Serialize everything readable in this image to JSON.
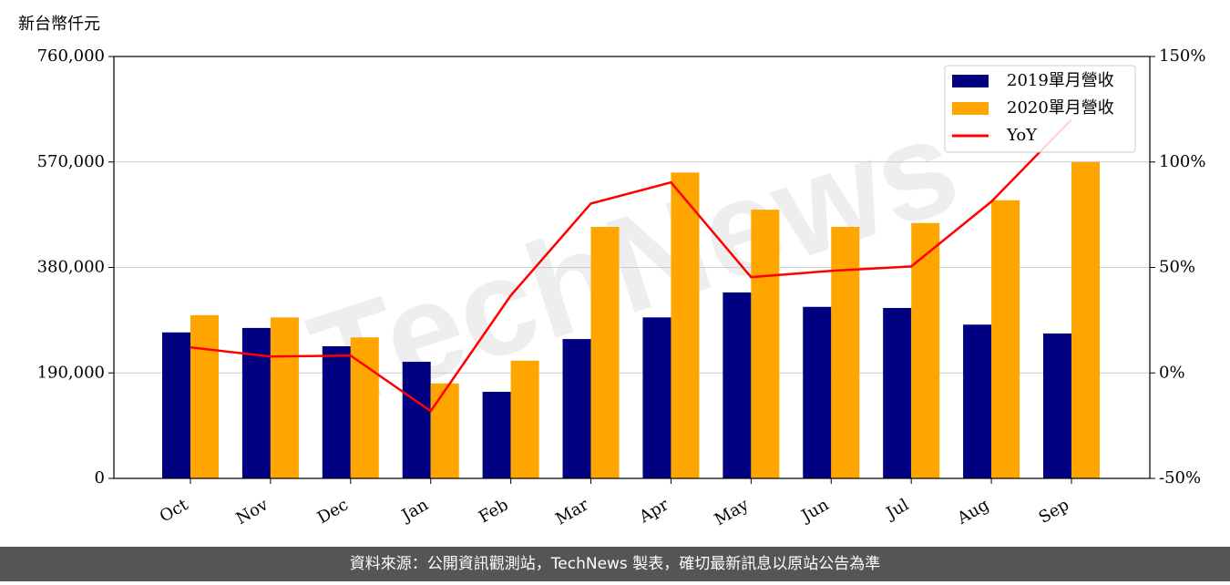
{
  "chart_data": {
    "type": "bar-line",
    "unit_label": "新台幣仟元",
    "watermark": "TechNews",
    "source": "資料來源：公開資訊觀測站，TechNews 製表，確切最新訊息以原站公告為準",
    "categories": [
      "Oct",
      "Nov",
      "Dec",
      "Jan",
      "Feb",
      "Mar",
      "Apr",
      "May",
      "Jun",
      "Jul",
      "Aug",
      "Sep"
    ],
    "series": [
      {
        "name": "2019單月營收",
        "color": "#000080",
        "type": "bar",
        "values": [
          263000,
          271000,
          238000,
          210000,
          156000,
          251000,
          290000,
          335000,
          309000,
          307000,
          277000,
          261000
        ]
      },
      {
        "name": "2020單月營收",
        "color": "#ffa500",
        "type": "bar",
        "values": [
          294000,
          290000,
          254000,
          171000,
          212000,
          453000,
          551000,
          484000,
          453000,
          460000,
          501000,
          570000
        ]
      },
      {
        "name": "YoY",
        "color": "#ff0000",
        "type": "line",
        "axis": "y2",
        "values": [
          12.1,
          7.8,
          8.2,
          -18.1,
          36.7,
          80.3,
          90.3,
          45.4,
          48.4,
          50.5,
          81.2,
          120.1
        ]
      }
    ],
    "ylim": [
      0,
      760000
    ],
    "yticks": [
      0,
      {
        "value": 190000,
        "label": "190,000"
      },
      {
        "value": 380000,
        "label": "380,000"
      },
      {
        "value": 570000,
        "label": "570,000"
      },
      {
        "value": 760000,
        "label": "760,000"
      }
    ],
    "y2lim": [
      -50,
      150
    ],
    "y2ticks": [
      {
        "value": -50,
        "label": "-50%"
      },
      {
        "value": 0,
        "label": "0%"
      },
      {
        "value": 50,
        "label": "50%"
      },
      {
        "value": 100,
        "label": "100%"
      },
      {
        "value": 150,
        "label": "150%"
      }
    ],
    "grid": true,
    "legend": "upper right"
  }
}
